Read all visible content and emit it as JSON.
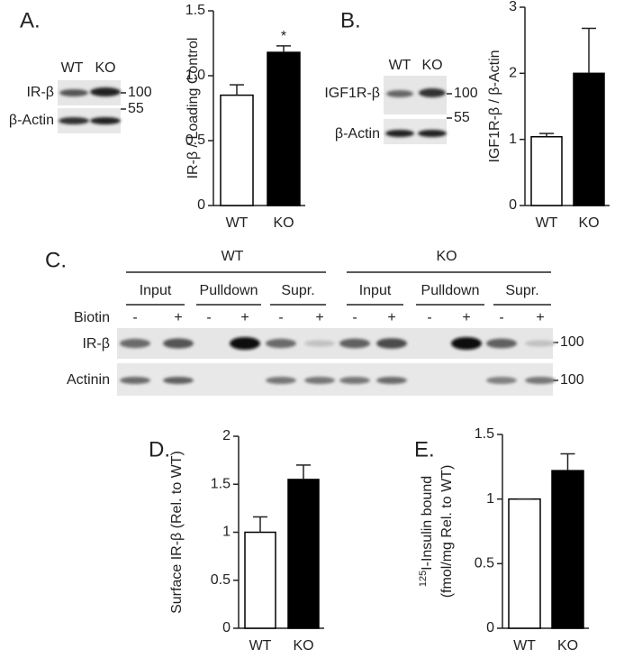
{
  "chart_data": [
    {
      "type": "bar",
      "ylabel": "IR-β / Loading Control",
      "categories": [
        "WT",
        "KO"
      ],
      "values": [
        0.85,
        1.18
      ],
      "errors": [
        0.08,
        0.05
      ],
      "colors": [
        "#ffffff",
        "#000000"
      ],
      "ylim": [
        0,
        1.5
      ],
      "yticks": [
        0,
        0.5,
        {
          "value": 1,
          "label": "1.0"
        },
        1.5
      ],
      "annotation": "*"
    },
    {
      "type": "bar",
      "ylabel": "IGF1R-β / β-Actin",
      "categories": [
        "WT",
        "KO"
      ],
      "values": [
        1.04,
        2.0
      ],
      "errors": [
        0.05,
        0.68
      ],
      "colors": [
        "#ffffff",
        "#000000"
      ],
      "ylim": [
        0,
        3
      ],
      "yticks": [
        0,
        1,
        2,
        3
      ]
    },
    {
      "type": "bar",
      "ylabel": "Surface IR-β (Rel. to WT)",
      "categories": [
        "WT",
        "KO"
      ],
      "values": [
        1.0,
        1.55
      ],
      "errors": [
        0.16,
        0.15
      ],
      "colors": [
        "#ffffff",
        "#000000"
      ],
      "ylim": [
        0,
        2
      ],
      "yticks": [
        0,
        0.5,
        1,
        1.5,
        2
      ]
    },
    {
      "type": "bar",
      "ylabel_superscript": "125",
      "ylabel": [
        "I-Insulin bound",
        "(fmol/mg Rel. to WT)"
      ],
      "categories": [
        "WT",
        "KO"
      ],
      "values": [
        1.0,
        1.22
      ],
      "errors": [
        0,
        0.13
      ],
      "colors": [
        "#ffffff",
        "#000000"
      ],
      "ylim": [
        0,
        1.5
      ],
      "yticks": [
        0,
        0.5,
        1,
        1.5
      ]
    }
  ],
  "panels": {
    "a": "A.",
    "b": "B.",
    "c": "C.",
    "d": "D.",
    "e": "E."
  },
  "blot_a": {
    "lanes": [
      "WT",
      "KO"
    ],
    "rows": [
      "IR-β",
      "β-Actin"
    ],
    "markers": [
      "100",
      "55"
    ]
  },
  "blot_b": {
    "lanes": [
      "WT",
      "KO"
    ],
    "rows": [
      "IGF1R-β",
      "β-Actin"
    ],
    "markers": [
      "100",
      "55"
    ]
  },
  "blot_c": {
    "groups": [
      "WT",
      "KO"
    ],
    "subgroups": [
      "Input",
      "Pulldown",
      "Supr.",
      "Input",
      "Pulldown",
      "Supr."
    ],
    "row_label": "Biotin",
    "biotin": [
      "-",
      "+",
      "-",
      "+",
      "-",
      "+",
      "-",
      "+",
      "-",
      "+",
      "-",
      "+"
    ],
    "rows": [
      "IR-β",
      "Actinin"
    ],
    "markers": [
      "100",
      "100"
    ]
  }
}
